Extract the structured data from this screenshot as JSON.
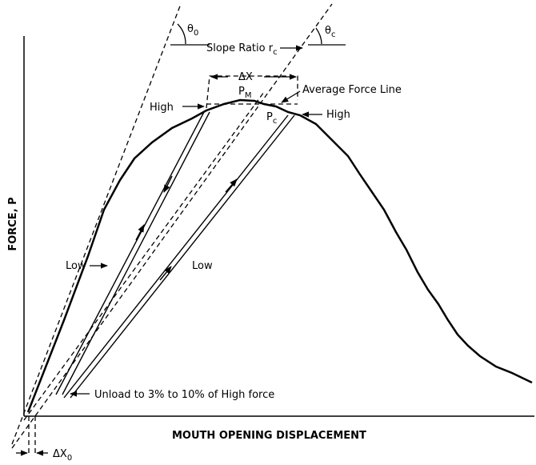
{
  "labels": {
    "theta0": {
      "text": "θ",
      "sub": "0"
    },
    "thetac": {
      "text": "θ",
      "sub": "c"
    },
    "slope_ratio": {
      "text": "Slope Ratio r",
      "sub": "c"
    },
    "delta_x": "ΔX",
    "pm": {
      "text": "P",
      "sub": "M"
    },
    "average_force_line": "Average Force Line",
    "high_left": "High",
    "pc": {
      "text": "P",
      "sub": "c"
    },
    "high_right": "High",
    "y_axis": "FORCE, P",
    "low_left": "Low",
    "low_right": "Low",
    "unload": "Unload to 3% to 10% of High force",
    "x_axis": "MOUTH OPENING DISPLACEMENT",
    "delta_x0": {
      "text": "ΔX",
      "sub": "0"
    }
  }
}
